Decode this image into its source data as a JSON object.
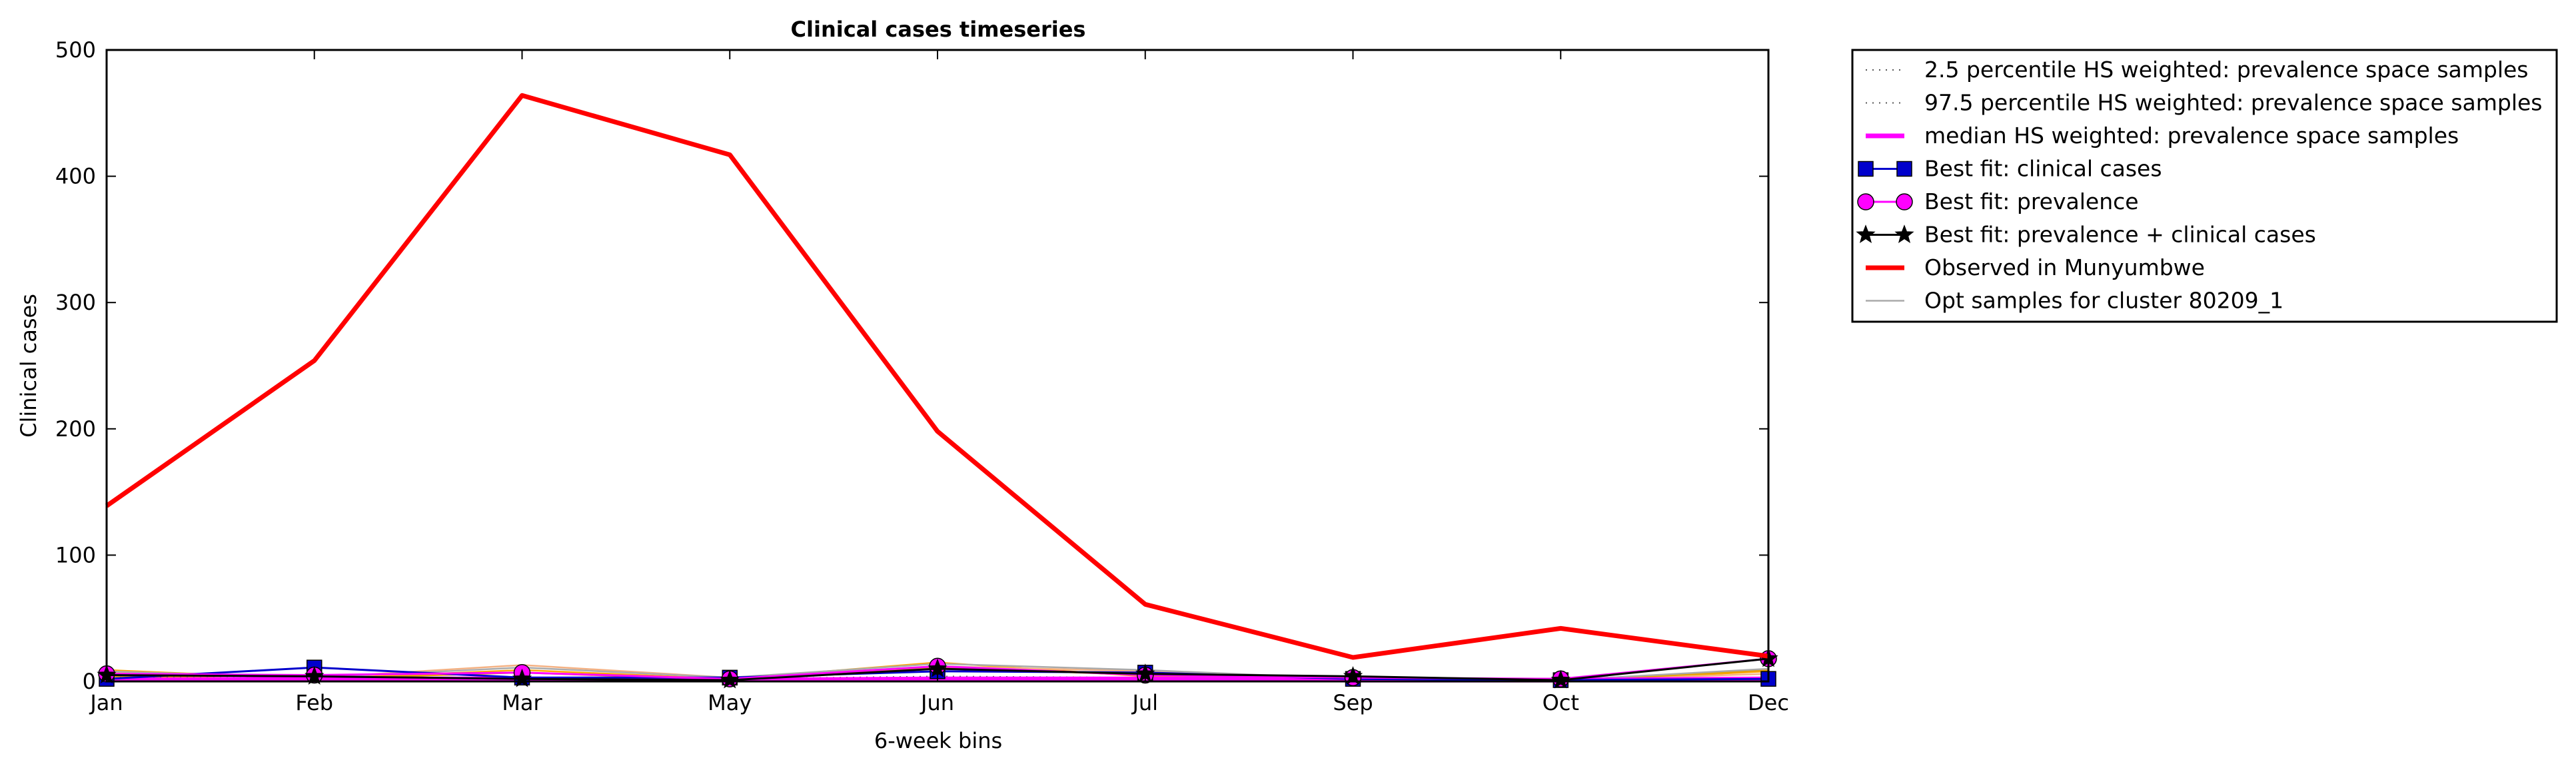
{
  "chart_data": {
    "type": "line",
    "title": "Clinical cases timeseries",
    "xlabel": "6-week bins",
    "ylabel": "Clinical cases",
    "categories": [
      "Jan",
      "Feb",
      "Mar",
      "May",
      "Jun",
      "Jul",
      "Sep",
      "Oct",
      "Dec"
    ],
    "ylim": [
      0,
      500
    ],
    "yticks": [
      0,
      100,
      200,
      300,
      400,
      500
    ],
    "grid": false,
    "legend_placement": "outside right, top",
    "series": [
      {
        "name": "2.5 percentile HS weighted: prevalence space samples",
        "style": "dotted",
        "color": "#555555",
        "values": [
          1,
          1,
          1,
          1,
          1,
          1,
          1,
          0,
          1
        ]
      },
      {
        "name": "97.5 percentile HS weighted: prevalence space samples",
        "style": "dotted",
        "color": "#555555",
        "values": [
          3,
          3,
          3,
          2,
          4,
          3,
          2,
          1,
          3
        ]
      },
      {
        "name": "median HS weighted: prevalence space samples",
        "style": "solid-thick",
        "color": "#ff00ff",
        "values": [
          1,
          2,
          2,
          1,
          2,
          2,
          1,
          1,
          2
        ]
      },
      {
        "name": "Best fit: clinical cases",
        "style": "line-square",
        "color": "#0000cc",
        "values": [
          2,
          11,
          3,
          3,
          8,
          7,
          2,
          1,
          2
        ]
      },
      {
        "name": "Best fit: prevalence",
        "style": "line-circle",
        "color": "#ff00ff",
        "values": [
          6,
          5,
          7,
          2,
          12,
          5,
          3,
          2,
          18
        ]
      },
      {
        "name": "Best fit: prevalence + clinical cases",
        "style": "line-star",
        "color": "#000000",
        "values": [
          5,
          4,
          2,
          1,
          10,
          6,
          4,
          1,
          18
        ]
      },
      {
        "name": "Observed in Munyumbwe",
        "style": "solid-thick",
        "color": "#ff0000",
        "values": [
          139,
          254,
          464,
          417,
          198,
          61,
          19,
          42,
          20
        ]
      },
      {
        "name": "Opt samples for cluster 80209_1",
        "style": "solid-thin",
        "color": "#aaaaaa",
        "values": [
          8,
          3,
          11,
          3,
          14,
          9,
          2,
          1,
          10
        ]
      }
    ],
    "opt_samples_extra": [
      {
        "color": "#ffa500",
        "values": [
          9,
          2,
          9,
          2,
          15,
          4,
          1,
          0,
          8
        ]
      },
      {
        "color": "#f4b183",
        "values": [
          7,
          3,
          13,
          3,
          12,
          8,
          2,
          1,
          6
        ]
      },
      {
        "color": "#e6a000",
        "values": [
          4,
          2,
          7,
          1,
          11,
          5,
          1,
          0,
          9
        ]
      }
    ]
  }
}
